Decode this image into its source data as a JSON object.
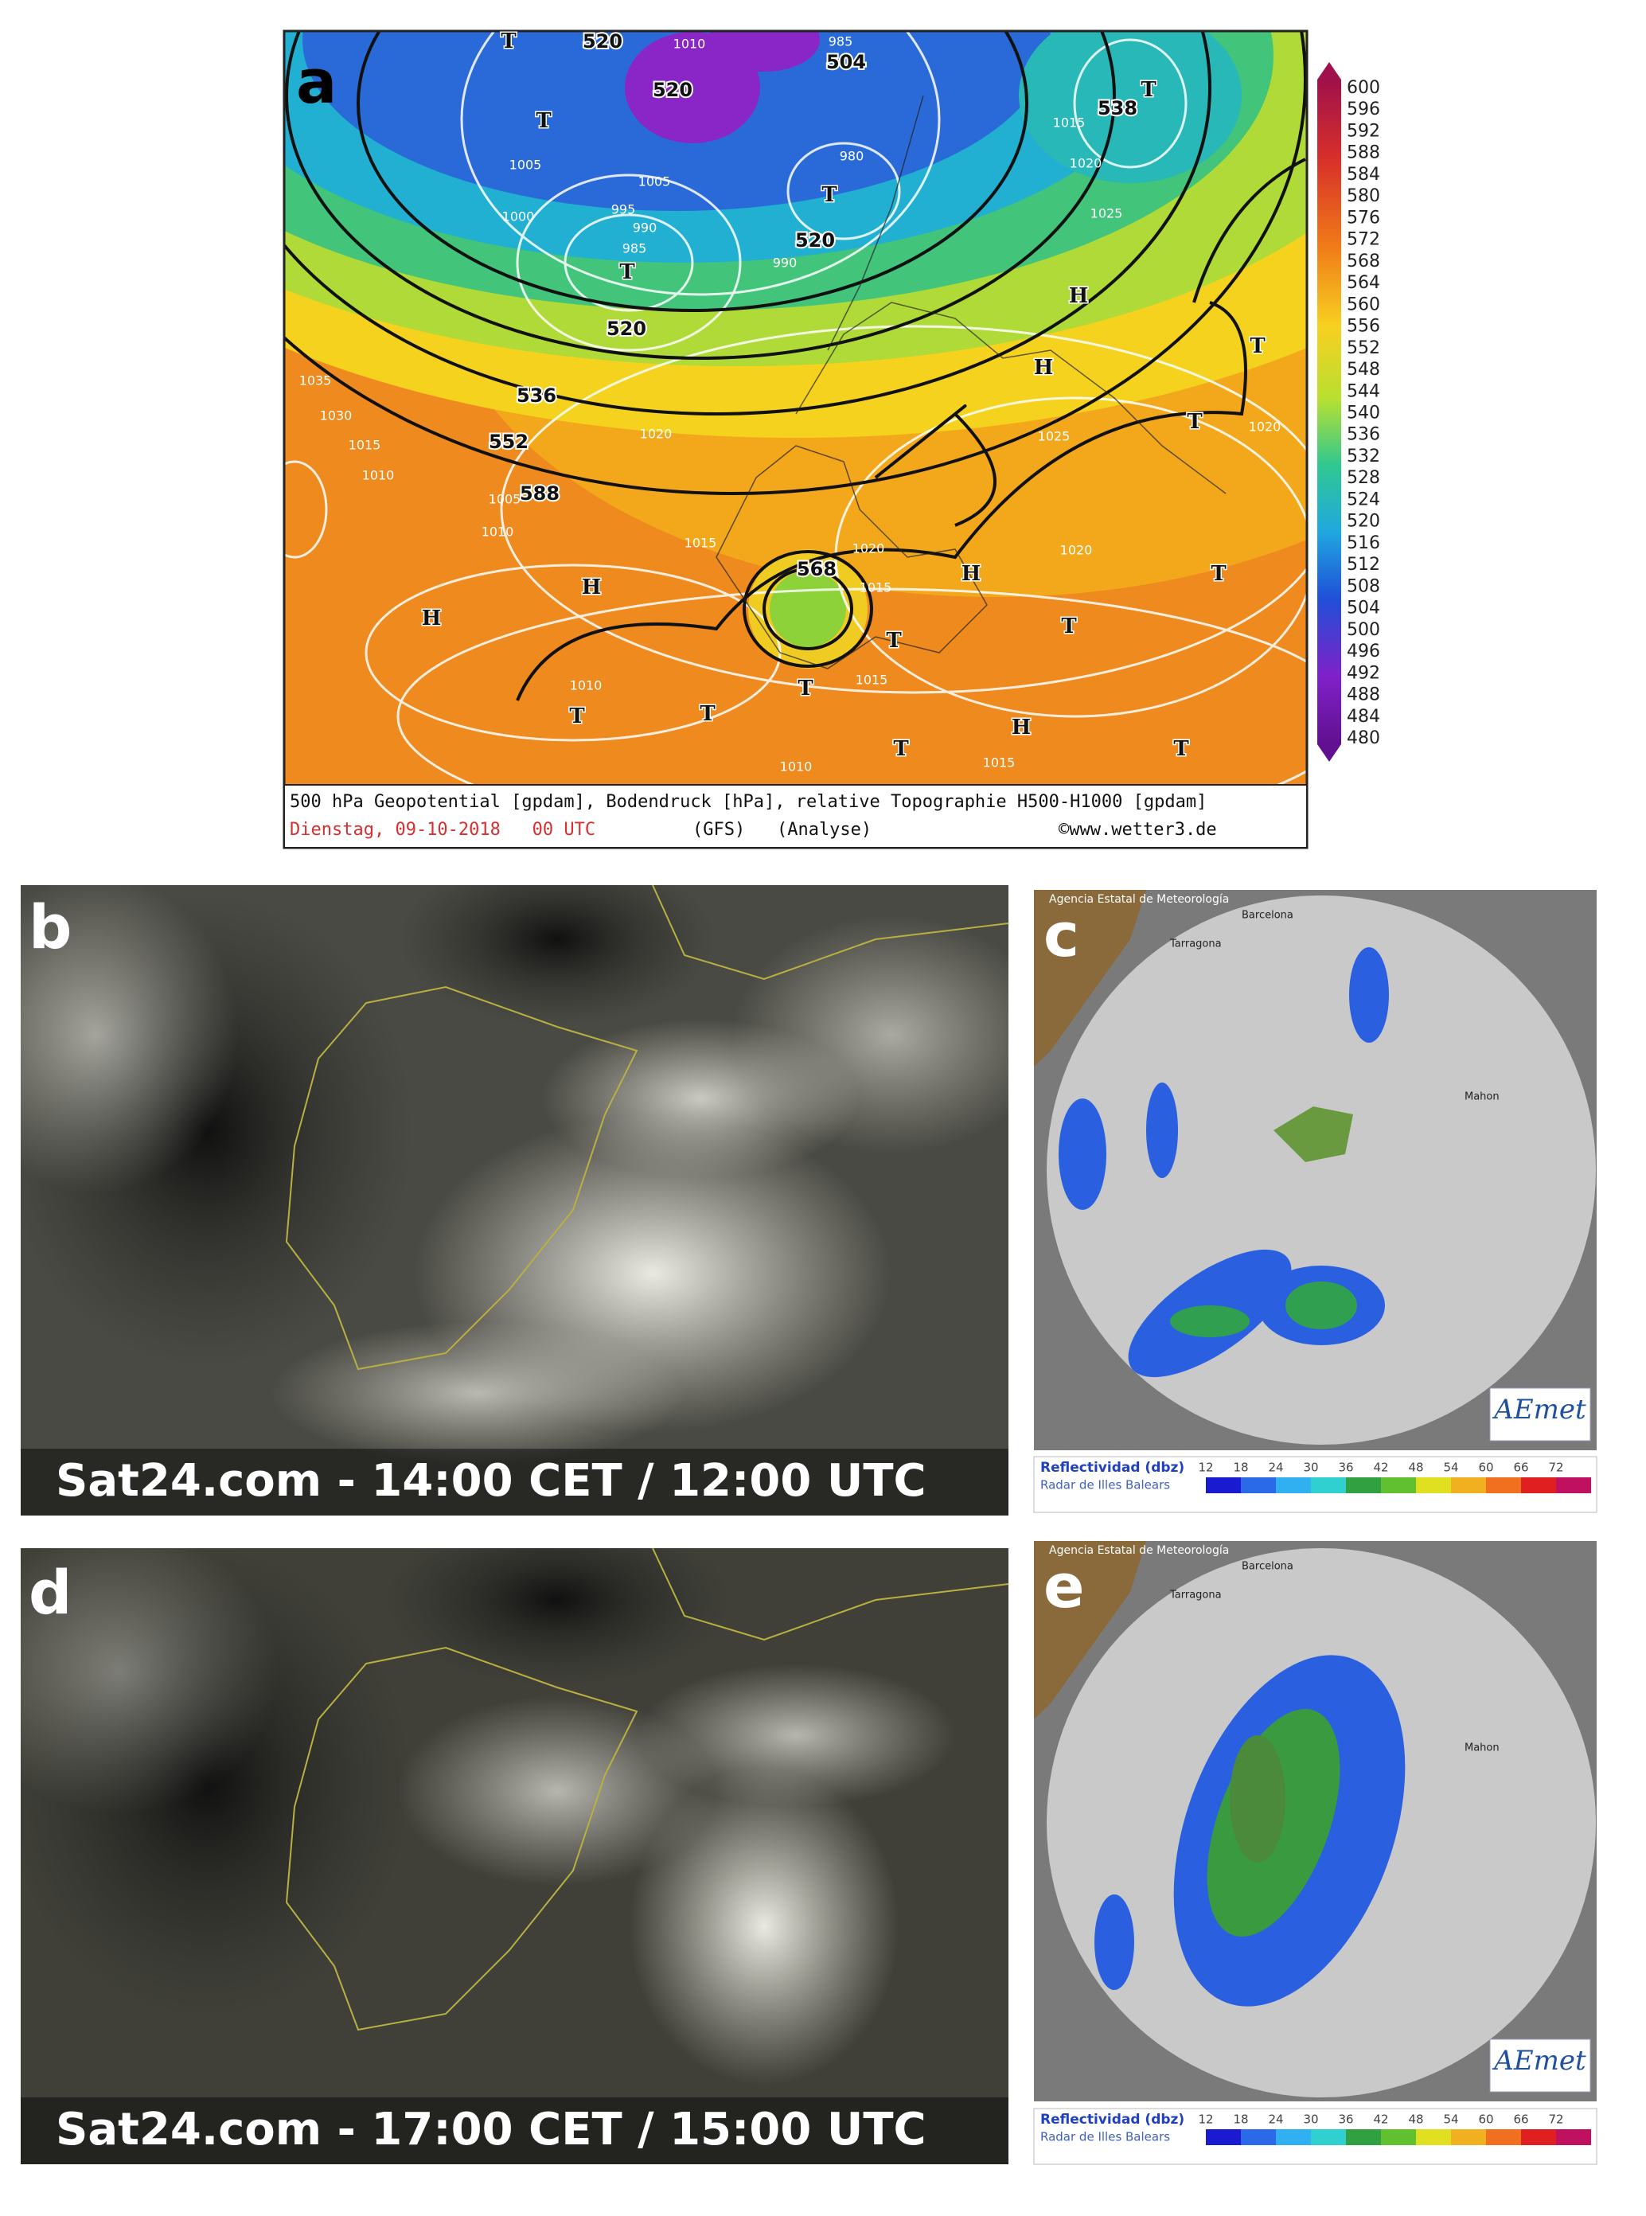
{
  "panels": {
    "a": {
      "label": "a",
      "colorbar": [
        600,
        596,
        592,
        588,
        584,
        580,
        576,
        572,
        568,
        564,
        560,
        556,
        552,
        548,
        544,
        540,
        536,
        532,
        528,
        524,
        520,
        516,
        512,
        508,
        504,
        500,
        496,
        492,
        488,
        484,
        480
      ],
      "contour_labels": [
        520,
        520,
        504,
        538,
        520,
        520,
        536,
        552,
        588,
        568
      ],
      "pressure_labels": [
        1010,
        985,
        1005,
        1000,
        995,
        990,
        985,
        1005,
        980,
        990,
        1015,
        1020,
        1025,
        1035,
        1030,
        1015,
        1010,
        1005,
        1010,
        1015,
        1025,
        1020,
        1020,
        1015,
        1020,
        1010,
        1015,
        1010,
        1015,
        1020
      ],
      "centers": [
        "T",
        "T",
        "T",
        "T",
        "H",
        "H",
        "T",
        "T",
        "H",
        "H",
        "T",
        "T",
        "T",
        "T",
        "H",
        "T",
        "T",
        "H",
        "T",
        "T",
        "T"
      ],
      "caption": "500 hPa Geopotential [gpdam], Bodendruck [hPa], relative Topographie H500-H1000 [gpdam]",
      "date": "Dienstag, 09-10-2018   00 UTC",
      "model": "(GFS)   (Analyse)",
      "credit": "©www.wetter3.de"
    },
    "b": {
      "label": "b",
      "caption": "Sat24.com - 14:00 CET / 12:00 UTC"
    },
    "c": {
      "label": "c",
      "agency": "Agencia Estatal de Meteorología",
      "places": [
        "Barcelona",
        "Tarragona",
        "Mahon"
      ],
      "logo": "AEmet",
      "legend_title": "Reflectividad (dbz)",
      "legend_subtitle": "Radar de Illes Balears",
      "scale": [
        12,
        18,
        24,
        30,
        36,
        42,
        48,
        54,
        60,
        66,
        72
      ]
    },
    "d": {
      "label": "d",
      "caption": "Sat24.com - 17:00 CET / 15:00 UTC"
    },
    "e": {
      "label": "e",
      "agency": "Agencia Estatal de Meteorología",
      "places": [
        "Barcelona",
        "Tarragona",
        "Mahon"
      ],
      "logo": "AEmet",
      "legend_title": "Reflectividad (dbz)",
      "legend_subtitle": "Radar de Illes Balears",
      "scale": [
        12,
        18,
        24,
        30,
        36,
        42,
        48,
        54,
        60,
        66,
        72
      ]
    }
  }
}
